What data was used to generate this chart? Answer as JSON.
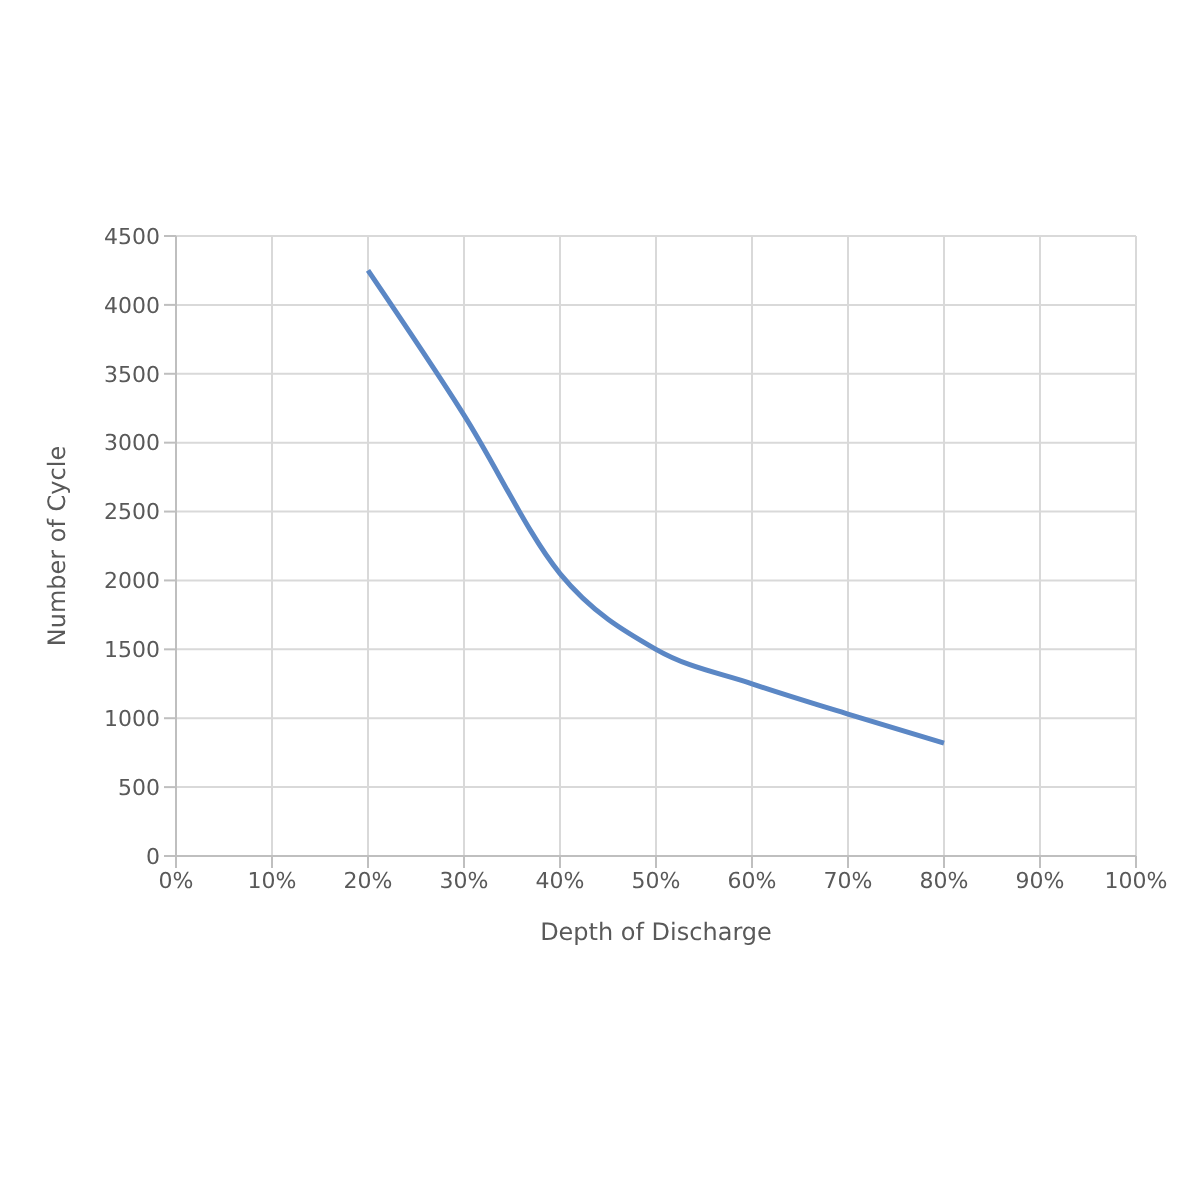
{
  "chart_data": {
    "type": "line",
    "xlabel": "Depth of Discharge",
    "ylabel": "Number of Cycle",
    "x": [
      20,
      30,
      40,
      50,
      60,
      70,
      80
    ],
    "series": [
      {
        "color": "#5b87c5",
        "values": [
          4250,
          3200,
          2050,
          1500,
          1250,
          1030,
          820
        ]
      }
    ],
    "xlim": [
      0,
      100
    ],
    "xticks": [
      {
        "value": 0,
        "label": "0%"
      },
      {
        "value": 10,
        "label": "10%"
      },
      {
        "value": 20,
        "label": "20%"
      },
      {
        "value": 30,
        "label": "30%"
      },
      {
        "value": 40,
        "label": "40%"
      },
      {
        "value": 50,
        "label": "50%"
      },
      {
        "value": 60,
        "label": "60%"
      },
      {
        "value": 70,
        "label": "70%"
      },
      {
        "value": 80,
        "label": "80%"
      },
      {
        "value": 90,
        "label": "90%"
      },
      {
        "value": 100,
        "label": "100%"
      }
    ],
    "ylim": [
      0,
      4500
    ],
    "yticks": [
      0,
      500,
      1000,
      1500,
      2000,
      2500,
      3000,
      3500,
      4000,
      4500
    ],
    "grid": true,
    "legend": false,
    "marker": "none",
    "line_style": "solid"
  }
}
